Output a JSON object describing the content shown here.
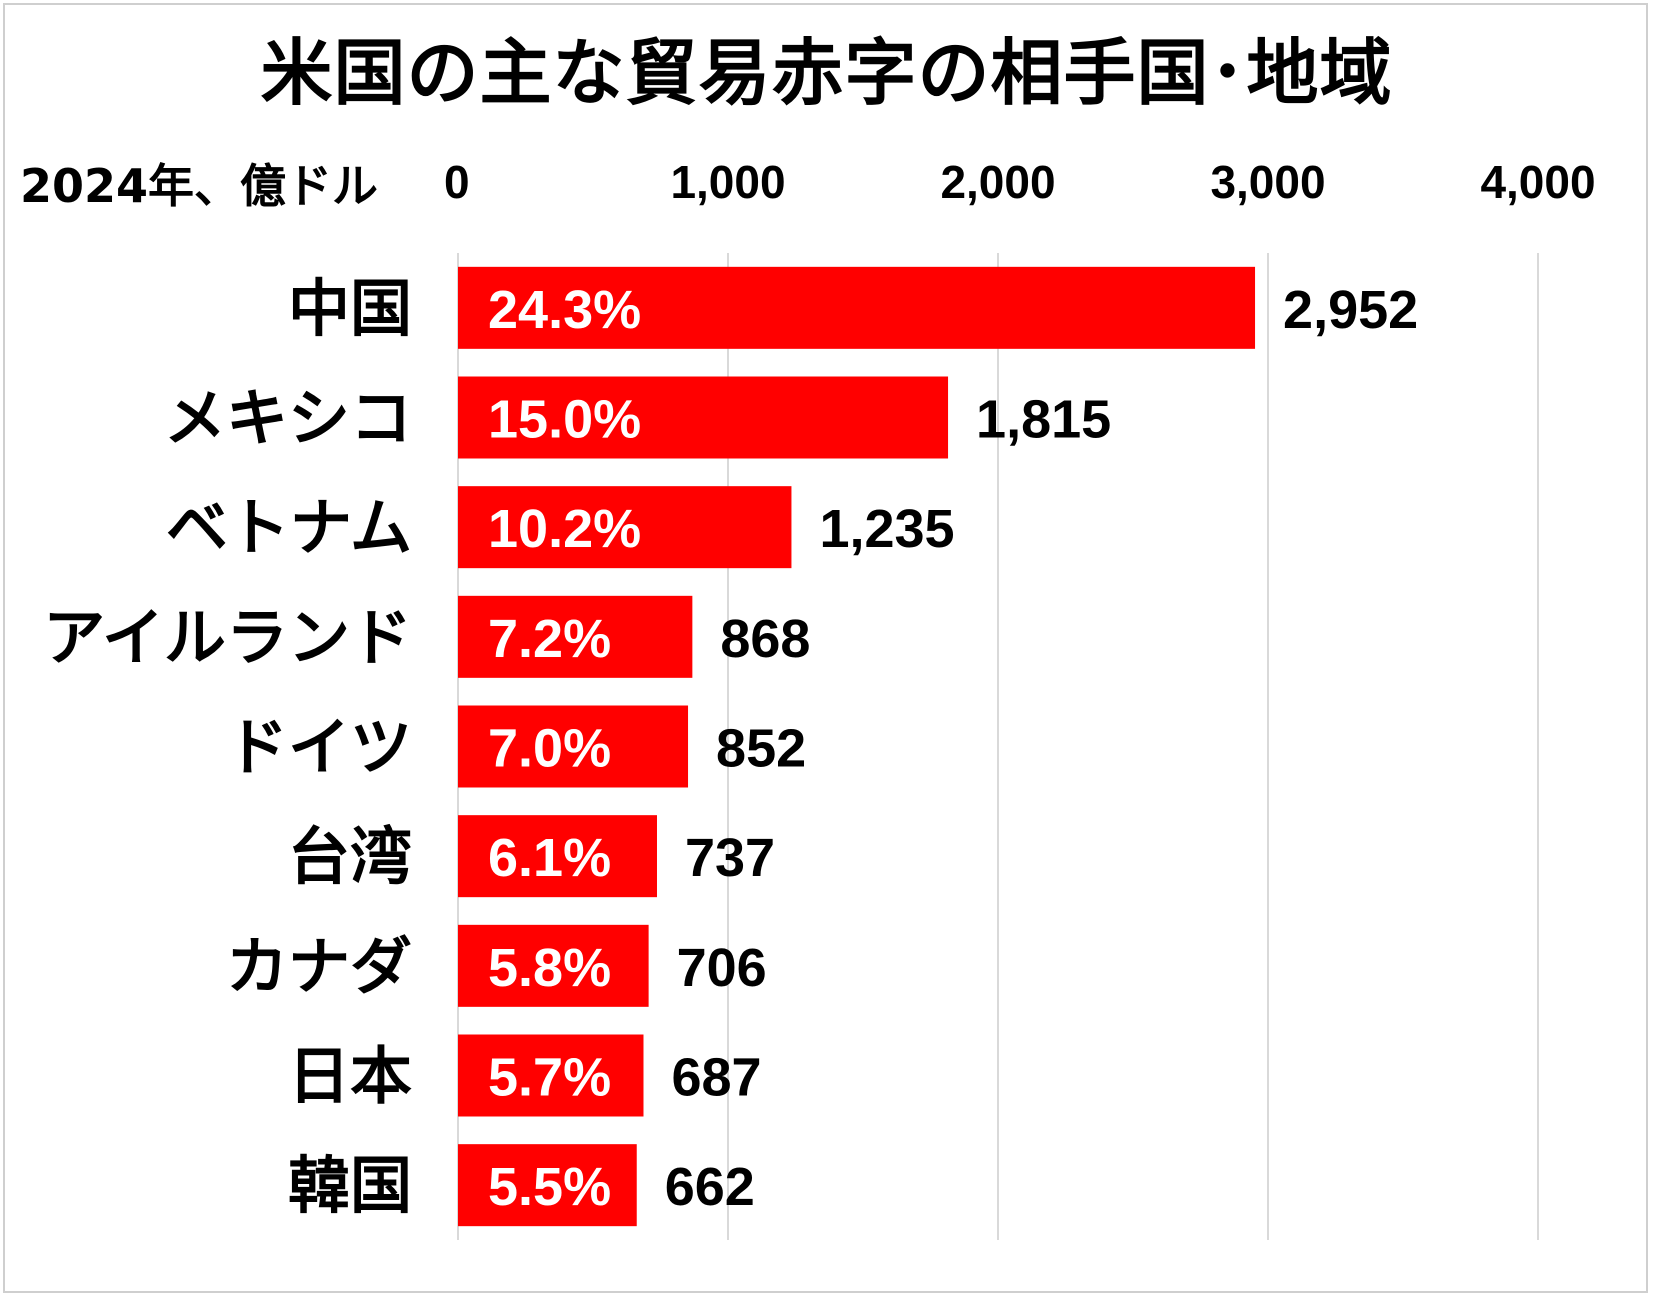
{
  "chart_data": {
    "type": "bar",
    "orientation": "horizontal",
    "title": "米国の主な貿易赤字の相手国･地域",
    "unit_label": "2024年、億ドル",
    "xlim": [
      0,
      4000
    ],
    "x_ticks": [
      "0",
      "1,000",
      "2,000",
      "3,000",
      "4,000"
    ],
    "x_tick_values": [
      0,
      1000,
      2000,
      3000,
      4000
    ],
    "grid": true,
    "bar_color": "#ff0000",
    "categories": [
      "中国",
      "メキシコ",
      "ベトナム",
      "アイルランド",
      "ドイツ",
      "台湾",
      "カナダ",
      "日本",
      "韓国"
    ],
    "values": [
      2952,
      1815,
      1235,
      868,
      852,
      737,
      706,
      687,
      662
    ],
    "value_labels": [
      "2,952",
      "1,815",
      "1,235",
      "868",
      "852",
      "737",
      "706",
      "687",
      "662"
    ],
    "share_labels": [
      "24.3%",
      "15.0%",
      "10.2%",
      "7.2%",
      "7.0%",
      "6.1%",
      "5.8%",
      "5.7%",
      "5.5%"
    ]
  }
}
